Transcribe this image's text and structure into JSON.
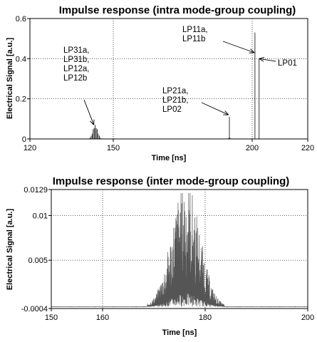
{
  "chart_data": [
    {
      "type": "line",
      "title": "Impulse response (intra mode-group coupling)",
      "xlabel": "Time [ns]",
      "ylabel": "Electrical Signal [a.u.]",
      "xlim": [
        120,
        220
      ],
      "ylim": [
        0,
        0.6
      ],
      "xticks": [
        120,
        150,
        200,
        220
      ],
      "yticks": [
        0,
        0.2,
        0.4,
        0.6
      ],
      "xtick_labels": [
        "120",
        "150",
        "200",
        "220"
      ],
      "ytick_labels": [
        "0",
        "0.2",
        "0.4",
        "0.6"
      ],
      "grid": true,
      "pulses": [
        {
          "center": 143.5,
          "width": 2.2,
          "peak": 0.07,
          "lines": 13
        },
        {
          "center": 191.8,
          "width": 0.25,
          "peak": 0.13,
          "lines": 3
        },
        {
          "center": 201.0,
          "width": 0.05,
          "peak": 0.53,
          "lines": 1
        },
        {
          "center": 202.5,
          "width": 0.05,
          "peak": 0.4,
          "lines": 1
        }
      ],
      "annotations": [
        {
          "label": [
            "LP31a,",
            "LP31b,",
            "LP12a,",
            "LP12b"
          ],
          "x": 143,
          "y": 0.07
        },
        {
          "label": [
            "LP21a,",
            "LP21b,",
            "LP02"
          ],
          "x": 191.5,
          "y": 0.12
        },
        {
          "label": [
            "LP11a,",
            "LP11b"
          ],
          "x": 200.8,
          "y": 0.43
        },
        {
          "label": [
            "LP01"
          ],
          "x": 202.5,
          "y": 0.4
        }
      ]
    },
    {
      "type": "line",
      "title": "Impulse response (inter mode-group coupling)",
      "xlabel": "Time [ns]",
      "ylabel": "Electrical Signal [a.u.]",
      "xlim": [
        150,
        200
      ],
      "ylim": [
        -0.0004,
        0.0129
      ],
      "xticks": [
        150,
        160,
        180,
        200
      ],
      "yticks": [
        -0.0004,
        0.005,
        0.01,
        0.0129
      ],
      "xtick_labels": [
        "150",
        "160",
        "180",
        "200"
      ],
      "ytick_labels": [
        "-0.0004",
        "0.005",
        "0.01",
        "0.0129"
      ],
      "grid": true,
      "envelope": {
        "center": 176.2,
        "sigma": 2.7,
        "peak": 0.0118,
        "floor": -0.0002,
        "max": 0.0125
      },
      "color": "#555555"
    }
  ]
}
